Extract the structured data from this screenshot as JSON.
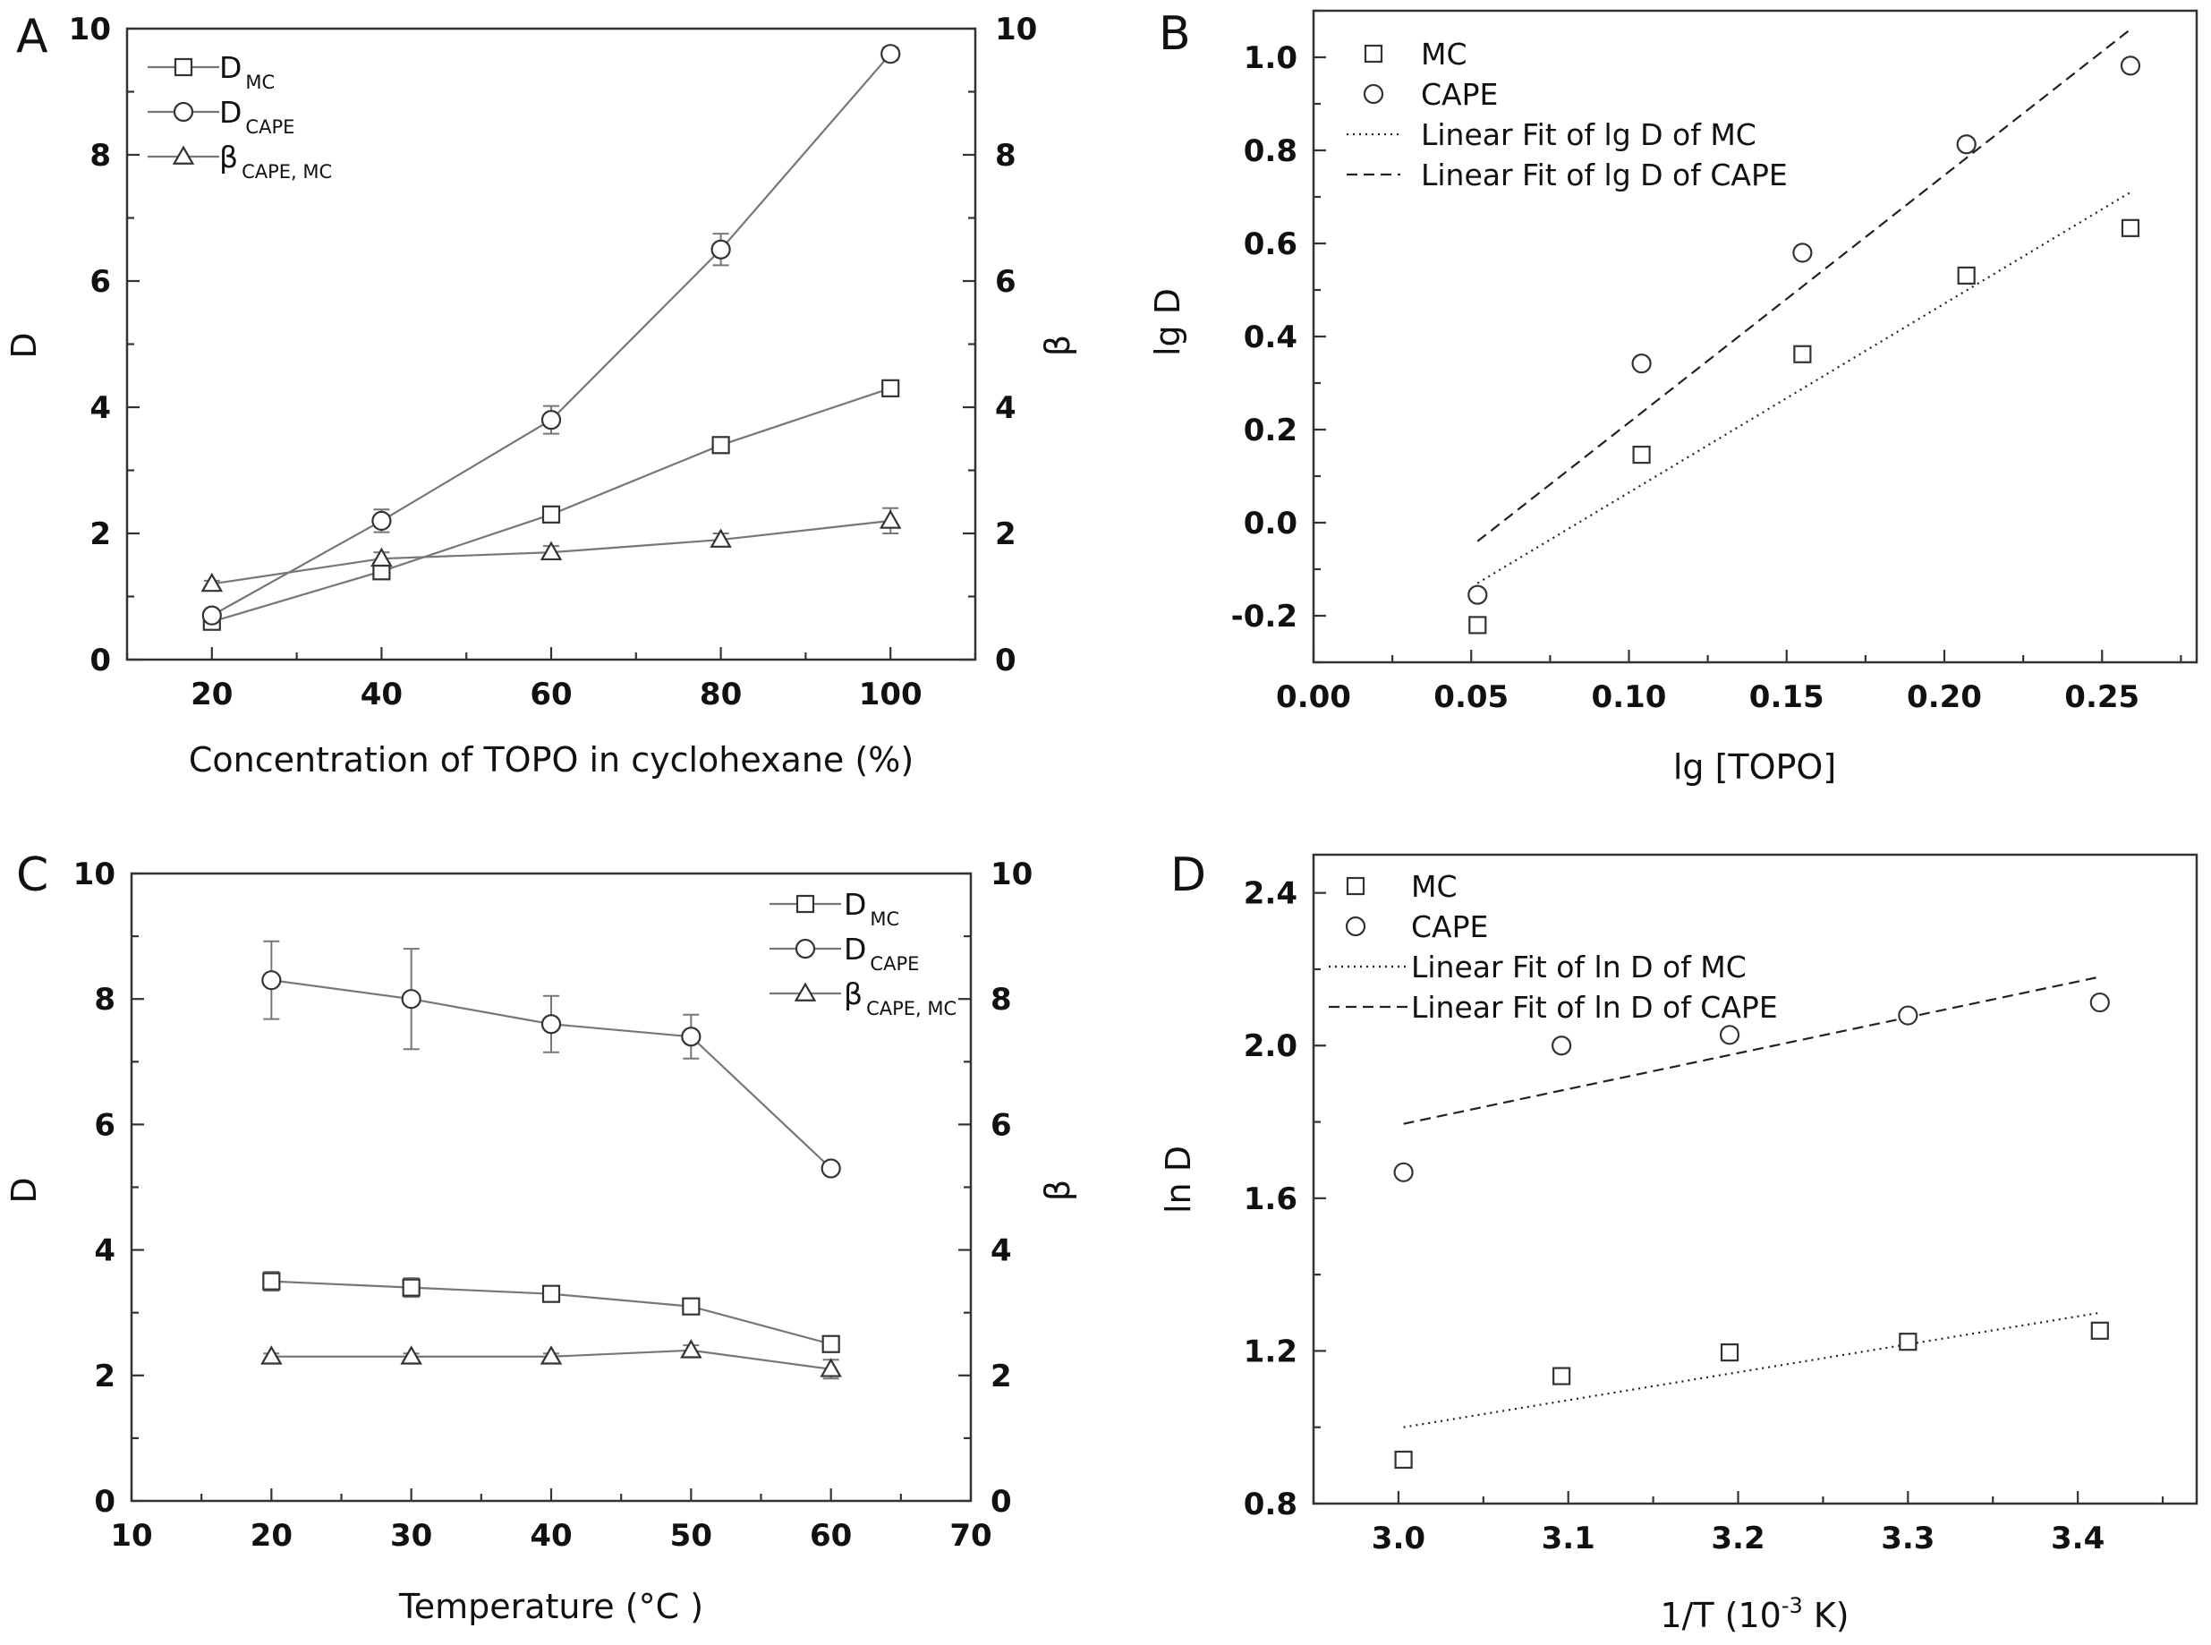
{
  "chart_data": [
    {
      "id": "A",
      "type": "line",
      "panel_label": "A",
      "xlabel": "Concentration of TOPO in cyclohexane (%)",
      "ylabel": "D",
      "y2label": "β",
      "xlim": [
        10,
        110
      ],
      "ylim": [
        0,
        10
      ],
      "y2lim": [
        0,
        10
      ],
      "xticks": [
        20,
        40,
        60,
        80,
        100
      ],
      "xtick_labels": [
        "20",
        "40",
        "60",
        "80",
        "100"
      ],
      "yticks": [
        0,
        2,
        4,
        6,
        8,
        10
      ],
      "ytick_labels": [
        "0",
        "2",
        "4",
        "6",
        "8",
        "10"
      ],
      "y2ticks": [
        0,
        2,
        4,
        6,
        8,
        10
      ],
      "y2tick_labels": [
        "0",
        "2",
        "4",
        "6",
        "8",
        "10"
      ],
      "legend_position": "top-left",
      "x": [
        20,
        40,
        60,
        80,
        100
      ],
      "series": [
        {
          "name": "D",
          "sub": "MC",
          "marker": "square",
          "values": [
            0.6,
            1.4,
            2.3,
            3.4,
            4.3
          ],
          "errors": [
            0.05,
            0.08,
            0.08,
            0.08,
            0.1
          ]
        },
        {
          "name": "D",
          "sub": "CAPE",
          "marker": "circle",
          "values": [
            0.7,
            2.2,
            3.8,
            6.5,
            9.6
          ],
          "errors": [
            0.08,
            0.18,
            0.22,
            0.25,
            0.1
          ]
        },
        {
          "name": "β",
          "sub": "CAPE, MC",
          "marker": "triangle",
          "values": [
            1.2,
            1.6,
            1.7,
            1.9,
            2.2
          ],
          "errors": [
            0.05,
            0.1,
            0.1,
            0.1,
            0.2
          ]
        }
      ]
    },
    {
      "id": "B",
      "type": "scatter",
      "panel_label": "B",
      "xlabel": "lg [TOPO]",
      "ylabel": "lg D",
      "xlim": [
        0.0,
        0.28
      ],
      "ylim": [
        -0.3,
        1.1
      ],
      "xticks": [
        0.0,
        0.05,
        0.1,
        0.15,
        0.2,
        0.25
      ],
      "xtick_labels": [
        "0.00",
        "0.05",
        "0.10",
        "0.15",
        "0.20",
        "0.25"
      ],
      "yticks": [
        -0.2,
        0.0,
        0.2,
        0.4,
        0.6,
        0.8,
        1.0
      ],
      "ytick_labels": [
        "-0.2",
        "0.0",
        "0.2",
        "0.4",
        "0.6",
        "0.8",
        "1.0"
      ],
      "legend_position": "top-left",
      "x": [
        0.052,
        0.104,
        0.155,
        0.207,
        0.259
      ],
      "series": [
        {
          "name": "MC",
          "marker": "square",
          "values": [
            -0.22,
            0.146,
            0.362,
            0.531,
            0.633
          ]
        },
        {
          "name": "CAPE",
          "marker": "circle",
          "values": [
            -0.155,
            0.342,
            0.58,
            0.813,
            0.982
          ]
        }
      ],
      "fits": [
        {
          "name": "Linear Fit of lg D of MC",
          "style": "dotted",
          "x": [
            0.052,
            0.259
          ],
          "y": [
            -0.13,
            0.71
          ]
        },
        {
          "name": "Linear Fit of lg D of CAPE",
          "style": "dashed",
          "x": [
            0.052,
            0.259
          ],
          "y": [
            -0.04,
            1.06
          ]
        }
      ]
    },
    {
      "id": "C",
      "type": "line",
      "panel_label": "C",
      "xlabel": "Temperature (°C )",
      "ylabel": "D",
      "y2label": "β",
      "xlim": [
        10,
        70
      ],
      "ylim": [
        0,
        10
      ],
      "y2lim": [
        0,
        10
      ],
      "xticks": [
        10,
        20,
        30,
        40,
        50,
        60,
        70
      ],
      "xtick_labels": [
        "10",
        "20",
        "30",
        "40",
        "50",
        "60",
        "70"
      ],
      "yticks": [
        0,
        2,
        4,
        6,
        8,
        10
      ],
      "ytick_labels": [
        "0",
        "2",
        "4",
        "6",
        "8",
        "10"
      ],
      "y2ticks": [
        0,
        2,
        4,
        6,
        8,
        10
      ],
      "y2tick_labels": [
        "0",
        "2",
        "4",
        "6",
        "8",
        "10"
      ],
      "legend_position": "top-right",
      "x": [
        20,
        30,
        40,
        50,
        60
      ],
      "series": [
        {
          "name": "D",
          "sub": "MC",
          "marker": "square",
          "values": [
            3.5,
            3.4,
            3.3,
            3.1,
            2.5
          ],
          "errors": [
            0.15,
            0.15,
            0.1,
            0.1,
            0.05
          ]
        },
        {
          "name": "D",
          "sub": "CAPE",
          "marker": "circle",
          "values": [
            8.3,
            8.0,
            7.6,
            7.4,
            5.3
          ],
          "errors": [
            0.62,
            0.8,
            0.45,
            0.35,
            0.05
          ]
        },
        {
          "name": "β",
          "sub": "CAPE, MC",
          "marker": "triangle",
          "values": [
            2.3,
            2.3,
            2.3,
            2.4,
            2.1
          ],
          "errors": [
            0.05,
            0.05,
            0.05,
            0.08,
            0.15
          ]
        }
      ]
    },
    {
      "id": "D",
      "type": "scatter",
      "panel_label": "D",
      "xlabel": "1/T (10",
      "xlabel_sup": "-3",
      "xlabel_end": " K)",
      "ylabel": "ln D",
      "xlim": [
        2.95,
        3.47
      ],
      "ylim": [
        0.8,
        2.5
      ],
      "xticks": [
        3.0,
        3.1,
        3.2,
        3.3,
        3.4
      ],
      "xtick_labels": [
        "3.0",
        "3.1",
        "3.2",
        "3.3",
        "3.4"
      ],
      "yticks": [
        0.8,
        1.2,
        1.6,
        2.0,
        2.4
      ],
      "ytick_labels": [
        "0.8",
        "1.2",
        "1.6",
        "2.0",
        "2.4"
      ],
      "legend_position": "top-left",
      "x": [
        3.003,
        3.096,
        3.195,
        3.3,
        3.413
      ],
      "series": [
        {
          "name": "MC",
          "marker": "square",
          "values": [
            0.915,
            1.134,
            1.196,
            1.224,
            1.253
          ]
        },
        {
          "name": "CAPE",
          "marker": "circle",
          "values": [
            1.668,
            2.0,
            2.028,
            2.079,
            2.113
          ]
        }
      ],
      "fits": [
        {
          "name": "Linear Fit of ln D of MC",
          "style": "dotted",
          "x": [
            3.003,
            3.413
          ],
          "y": [
            1.0,
            1.3
          ]
        },
        {
          "name": "Linear Fit of ln D of CAPE",
          "style": "dashed",
          "x": [
            3.003,
            3.413
          ],
          "y": [
            1.795,
            2.18
          ]
        }
      ]
    }
  ]
}
